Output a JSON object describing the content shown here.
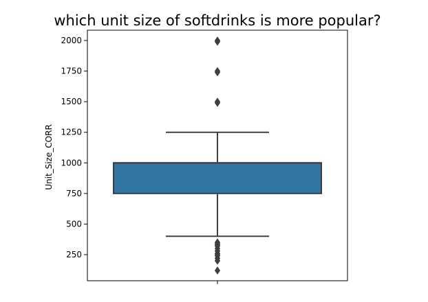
{
  "chart_data": {
    "type": "box",
    "title": "which unit size of softdrinks is more popular?",
    "xlabel": "",
    "ylabel": "Unit_Size_CORR",
    "ylim": [
      100,
      2080
    ],
    "yticks": [
      250,
      500,
      750,
      1000,
      1250,
      1500,
      1750,
      2000
    ],
    "box": {
      "q1": 750,
      "median": 1000,
      "q3": 1000,
      "whisker_low": 400,
      "whisker_high": 1250,
      "color": "#3274a1",
      "edge_color": "#3f3f3f"
    },
    "outliers": [
      120,
      200,
      220,
      240,
      250,
      260,
      280,
      300,
      320,
      330,
      340,
      350,
      1490,
      1500,
      1740,
      1750,
      1990,
      2000
    ]
  }
}
